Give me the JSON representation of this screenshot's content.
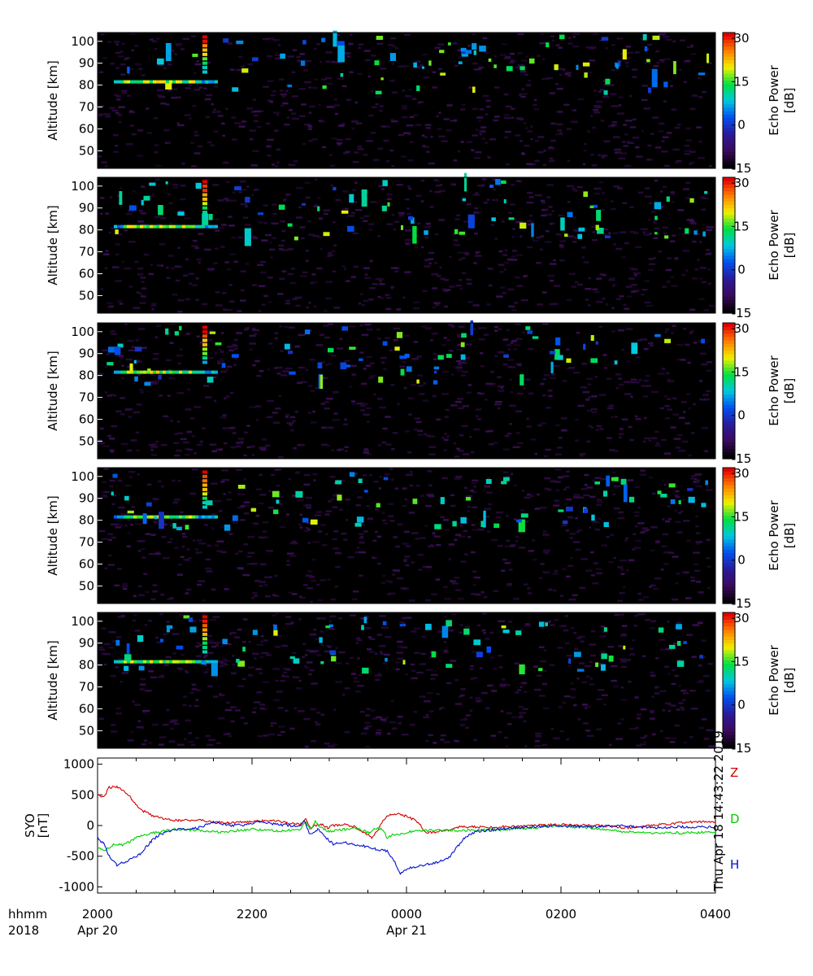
{
  "chart_data": [
    {
      "type": "heatmap",
      "panels": 5,
      "ylabel": "Altitude [km]",
      "ylim": [
        42,
        104
      ],
      "yticks": [
        50,
        60,
        70,
        80,
        90,
        100
      ],
      "colorbar": {
        "label": "Echo Power",
        "unit": "[dB]",
        "range": [
          -15,
          32
        ],
        "ticks": [
          -15,
          0,
          15,
          30
        ],
        "colormap": "rainbow",
        "colors": [
          "#000000",
          "#3a0a5e",
          "#2a1a9a",
          "#0050f0",
          "#00c8e0",
          "#00e040",
          "#f0f000",
          "#ff8000",
          "#e00000"
        ]
      },
      "background_color": "#000000",
      "noise_color": "#2a0a3e",
      "features": {
        "mesospheric_echo_layer_km": [
          80,
          83
        ],
        "mesospheric_echo_start": "2000",
        "mesospheric_echo_end": "2130",
        "sporadic_echoes_altitude_km": [
          75,
          100
        ]
      }
    },
    {
      "type": "line",
      "ylabel": "SYO",
      "unit": "[nT]",
      "ylim": [
        -1100,
        1100
      ],
      "yticks": [
        -1000,
        -500,
        0,
        500,
        1000
      ],
      "series": [
        {
          "name": "Z",
          "color": "#d00000",
          "points": [
            [
              0,
              500
            ],
            [
              8,
              460
            ],
            [
              15,
              620
            ],
            [
              25,
              630
            ],
            [
              35,
              560
            ],
            [
              45,
              420
            ],
            [
              55,
              260
            ],
            [
              70,
              170
            ],
            [
              85,
              110
            ],
            [
              105,
              80
            ],
            [
              130,
              90
            ],
            [
              150,
              60
            ],
            [
              170,
              40
            ],
            [
              200,
              60
            ],
            [
              225,
              90
            ],
            [
              245,
              40
            ],
            [
              262,
              20
            ],
            [
              270,
              100
            ],
            [
              275,
              -40
            ],
            [
              280,
              0
            ],
            [
              290,
              20
            ],
            [
              298,
              -40
            ],
            [
              305,
              0
            ],
            [
              320,
              20
            ],
            [
              335,
              -30
            ],
            [
              345,
              -120
            ],
            [
              355,
              -200
            ],
            [
              362,
              -100
            ],
            [
              370,
              100
            ],
            [
              380,
              180
            ],
            [
              390,
              200
            ],
            [
              398,
              160
            ],
            [
              405,
              120
            ],
            [
              415,
              60
            ],
            [
              422,
              -80
            ],
            [
              428,
              -120
            ],
            [
              440,
              -100
            ],
            [
              470,
              -20
            ],
            [
              510,
              -30
            ],
            [
              560,
              0
            ],
            [
              610,
              20
            ],
            [
              660,
              -10
            ],
            [
              690,
              -40
            ],
            [
              720,
              0
            ],
            [
              750,
              40
            ],
            [
              780,
              60
            ],
            [
              800,
              50
            ]
          ]
        },
        {
          "name": "D",
          "color": "#00d000",
          "points": [
            [
              0,
              -350
            ],
            [
              10,
              -400
            ],
            [
              22,
              -300
            ],
            [
              32,
              -320
            ],
            [
              42,
              -260
            ],
            [
              52,
              -180
            ],
            [
              65,
              -140
            ],
            [
              80,
              -100
            ],
            [
              100,
              -60
            ],
            [
              120,
              -70
            ],
            [
              140,
              -90
            ],
            [
              160,
              -110
            ],
            [
              180,
              -80
            ],
            [
              200,
              -60
            ],
            [
              220,
              -80
            ],
            [
              240,
              -90
            ],
            [
              262,
              -60
            ],
            [
              270,
              60
            ],
            [
              275,
              -80
            ],
            [
              282,
              60
            ],
            [
              290,
              -40
            ],
            [
              300,
              -100
            ],
            [
              320,
              -60
            ],
            [
              335,
              -40
            ],
            [
              352,
              -120
            ],
            [
              358,
              -50
            ],
            [
              368,
              -60
            ],
            [
              375,
              -200
            ],
            [
              382,
              -150
            ],
            [
              390,
              -140
            ],
            [
              400,
              -110
            ],
            [
              420,
              -80
            ],
            [
              460,
              -80
            ],
            [
              520,
              -70
            ],
            [
              560,
              -40
            ],
            [
              600,
              -10
            ],
            [
              640,
              -40
            ],
            [
              680,
              -100
            ],
            [
              720,
              -120
            ],
            [
              760,
              -120
            ],
            [
              800,
              -110
            ]
          ]
        },
        {
          "name": "H",
          "color": "#0010d0",
          "points": [
            [
              0,
              -200
            ],
            [
              8,
              -300
            ],
            [
              15,
              -500
            ],
            [
              25,
              -640
            ],
            [
              35,
              -600
            ],
            [
              45,
              -530
            ],
            [
              55,
              -470
            ],
            [
              62,
              -360
            ],
            [
              70,
              -250
            ],
            [
              80,
              -150
            ],
            [
              95,
              -80
            ],
            [
              110,
              -60
            ],
            [
              130,
              -40
            ],
            [
              150,
              60
            ],
            [
              170,
              0
            ],
            [
              190,
              10
            ],
            [
              210,
              60
            ],
            [
              230,
              20
            ],
            [
              250,
              0
            ],
            [
              262,
              -20
            ],
            [
              268,
              80
            ],
            [
              275,
              -150
            ],
            [
              285,
              -60
            ],
            [
              292,
              -150
            ],
            [
              305,
              -300
            ],
            [
              320,
              -280
            ],
            [
              340,
              -320
            ],
            [
              360,
              -380
            ],
            [
              375,
              -420
            ],
            [
              385,
              -600
            ],
            [
              392,
              -780
            ],
            [
              402,
              -700
            ],
            [
              420,
              -650
            ],
            [
              440,
              -600
            ],
            [
              455,
              -520
            ],
            [
              465,
              -360
            ],
            [
              475,
              -200
            ],
            [
              490,
              -100
            ],
            [
              520,
              -60
            ],
            [
              560,
              -20
            ],
            [
              600,
              0
            ],
            [
              640,
              -20
            ],
            [
              680,
              0
            ],
            [
              720,
              -40
            ],
            [
              760,
              -20
            ],
            [
              800,
              -30
            ]
          ]
        }
      ]
    }
  ],
  "xaxis": {
    "row1_label": "hhmm",
    "row2_label": "2018",
    "ticks": [
      {
        "time": "2000",
        "date": "Apr 20"
      },
      {
        "time": "2200",
        "date": ""
      },
      {
        "time": "0000",
        "date": "Apr 21"
      },
      {
        "time": "0200",
        "date": ""
      },
      {
        "time": "0400",
        "date": ""
      }
    ]
  },
  "timestamp": "Thu Apr 18 14:43:22 2019"
}
